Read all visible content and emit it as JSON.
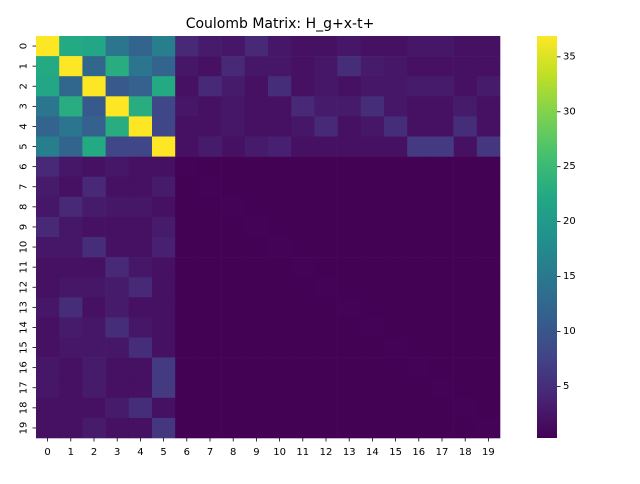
{
  "chart_data": {
    "type": "heatmap",
    "title": "Coulomb Matrix: H_g+x-t+",
    "xlabel": "",
    "ylabel": "",
    "x_categories": [
      "0",
      "1",
      "2",
      "3",
      "4",
      "5",
      "6",
      "7",
      "8",
      "9",
      "10",
      "11",
      "12",
      "13",
      "14",
      "15",
      "16",
      "17",
      "18",
      "19"
    ],
    "y_categories": [
      "0",
      "1",
      "2",
      "3",
      "4",
      "5",
      "6",
      "7",
      "8",
      "9",
      "10",
      "11",
      "12",
      "13",
      "14",
      "15",
      "16",
      "17",
      "18",
      "19"
    ],
    "colormap": "viridis",
    "vmin": 0.3,
    "vmax": 36.9,
    "colorbar_ticks": [
      5,
      10,
      15,
      20,
      25,
      30,
      35
    ],
    "values": [
      [
        36.9,
        22.5,
        22.0,
        14.5,
        12.0,
        16.0,
        4.5,
        3.0,
        2.5,
        4.5,
        2.5,
        2.0,
        2.0,
        2.5,
        2.0,
        2.0,
        2.5,
        2.5,
        2.0,
        2.0
      ],
      [
        22.5,
        36.9,
        12.5,
        23.0,
        14.5,
        12.0,
        2.5,
        2.0,
        4.5,
        2.5,
        2.5,
        2.0,
        2.5,
        5.0,
        3.0,
        2.5,
        2.0,
        2.0,
        2.0,
        2.0
      ],
      [
        22.0,
        12.5,
        36.9,
        10.5,
        11.5,
        22.5,
        2.0,
        4.5,
        3.0,
        2.0,
        5.0,
        2.0,
        2.5,
        2.0,
        2.5,
        2.5,
        3.0,
        3.0,
        2.0,
        3.0
      ],
      [
        14.5,
        23.0,
        10.5,
        36.9,
        23.0,
        8.0,
        2.5,
        2.0,
        2.5,
        2.0,
        2.0,
        4.5,
        3.0,
        3.0,
        5.0,
        2.5,
        2.0,
        2.0,
        3.0,
        2.0
      ],
      [
        12.0,
        14.5,
        11.5,
        23.0,
        36.9,
        8.0,
        2.0,
        2.0,
        2.5,
        2.0,
        2.0,
        2.5,
        4.5,
        2.0,
        2.5,
        5.0,
        2.0,
        2.0,
        5.0,
        2.0
      ],
      [
        16.0,
        12.0,
        22.5,
        8.0,
        8.0,
        36.9,
        2.0,
        3.0,
        2.0,
        3.0,
        3.5,
        2.0,
        2.0,
        2.0,
        2.0,
        2.0,
        6.5,
        6.5,
        2.0,
        6.0
      ],
      [
        4.5,
        2.5,
        2.0,
        2.5,
        2.0,
        2.0,
        0.5,
        0.4,
        0.4,
        0.4,
        0.4,
        0.4,
        0.4,
        0.4,
        0.4,
        0.4,
        0.4,
        0.4,
        0.4,
        0.4
      ],
      [
        3.0,
        2.0,
        4.5,
        2.0,
        2.0,
        3.0,
        0.4,
        0.5,
        0.4,
        0.4,
        0.4,
        0.4,
        0.4,
        0.4,
        0.4,
        0.4,
        0.4,
        0.4,
        0.4,
        0.4
      ],
      [
        2.5,
        4.5,
        3.0,
        2.5,
        2.5,
        2.0,
        0.4,
        0.4,
        0.5,
        0.4,
        0.4,
        0.4,
        0.4,
        0.4,
        0.4,
        0.4,
        0.4,
        0.4,
        0.4,
        0.4
      ],
      [
        4.5,
        2.5,
        2.0,
        2.0,
        2.0,
        3.0,
        0.4,
        0.4,
        0.4,
        0.5,
        0.4,
        0.4,
        0.4,
        0.4,
        0.4,
        0.4,
        0.4,
        0.4,
        0.4,
        0.4
      ],
      [
        2.5,
        2.5,
        5.0,
        2.0,
        2.0,
        3.5,
        0.4,
        0.4,
        0.4,
        0.4,
        0.5,
        0.4,
        0.4,
        0.4,
        0.4,
        0.4,
        0.4,
        0.4,
        0.4,
        0.4
      ],
      [
        2.0,
        2.0,
        2.0,
        4.5,
        2.5,
        2.0,
        0.4,
        0.4,
        0.4,
        0.4,
        0.4,
        0.5,
        0.4,
        0.4,
        0.4,
        0.4,
        0.4,
        0.4,
        0.4,
        0.4
      ],
      [
        2.0,
        2.5,
        2.5,
        3.0,
        4.5,
        2.0,
        0.4,
        0.4,
        0.4,
        0.4,
        0.4,
        0.4,
        0.5,
        0.4,
        0.4,
        0.4,
        0.4,
        0.4,
        0.4,
        0.4
      ],
      [
        2.5,
        5.0,
        2.0,
        3.0,
        2.0,
        2.0,
        0.4,
        0.4,
        0.4,
        0.4,
        0.4,
        0.4,
        0.4,
        0.5,
        0.4,
        0.4,
        0.4,
        0.4,
        0.4,
        0.4
      ],
      [
        2.0,
        3.0,
        2.5,
        5.0,
        2.5,
        2.0,
        0.4,
        0.4,
        0.4,
        0.4,
        0.4,
        0.4,
        0.4,
        0.4,
        0.5,
        0.4,
        0.4,
        0.4,
        0.4,
        0.4
      ],
      [
        2.0,
        2.5,
        2.5,
        2.5,
        5.0,
        2.0,
        0.4,
        0.4,
        0.4,
        0.4,
        0.4,
        0.4,
        0.4,
        0.4,
        0.4,
        0.5,
        0.4,
        0.4,
        0.4,
        0.4
      ],
      [
        2.5,
        2.0,
        3.0,
        2.0,
        2.0,
        6.5,
        0.4,
        0.4,
        0.4,
        0.4,
        0.4,
        0.4,
        0.4,
        0.4,
        0.4,
        0.4,
        0.5,
        0.4,
        0.4,
        0.4
      ],
      [
        2.5,
        2.0,
        3.0,
        2.0,
        2.0,
        6.5,
        0.4,
        0.4,
        0.4,
        0.4,
        0.4,
        0.4,
        0.4,
        0.4,
        0.4,
        0.4,
        0.4,
        0.5,
        0.4,
        0.4
      ],
      [
        2.0,
        2.0,
        2.0,
        3.0,
        5.0,
        2.0,
        0.4,
        0.4,
        0.4,
        0.4,
        0.4,
        0.4,
        0.4,
        0.4,
        0.4,
        0.4,
        0.4,
        0.4,
        0.5,
        0.4
      ],
      [
        2.0,
        2.0,
        3.0,
        2.0,
        2.0,
        6.0,
        0.4,
        0.4,
        0.4,
        0.4,
        0.4,
        0.4,
        0.4,
        0.4,
        0.4,
        0.4,
        0.4,
        0.4,
        0.4,
        0.5
      ]
    ]
  }
}
